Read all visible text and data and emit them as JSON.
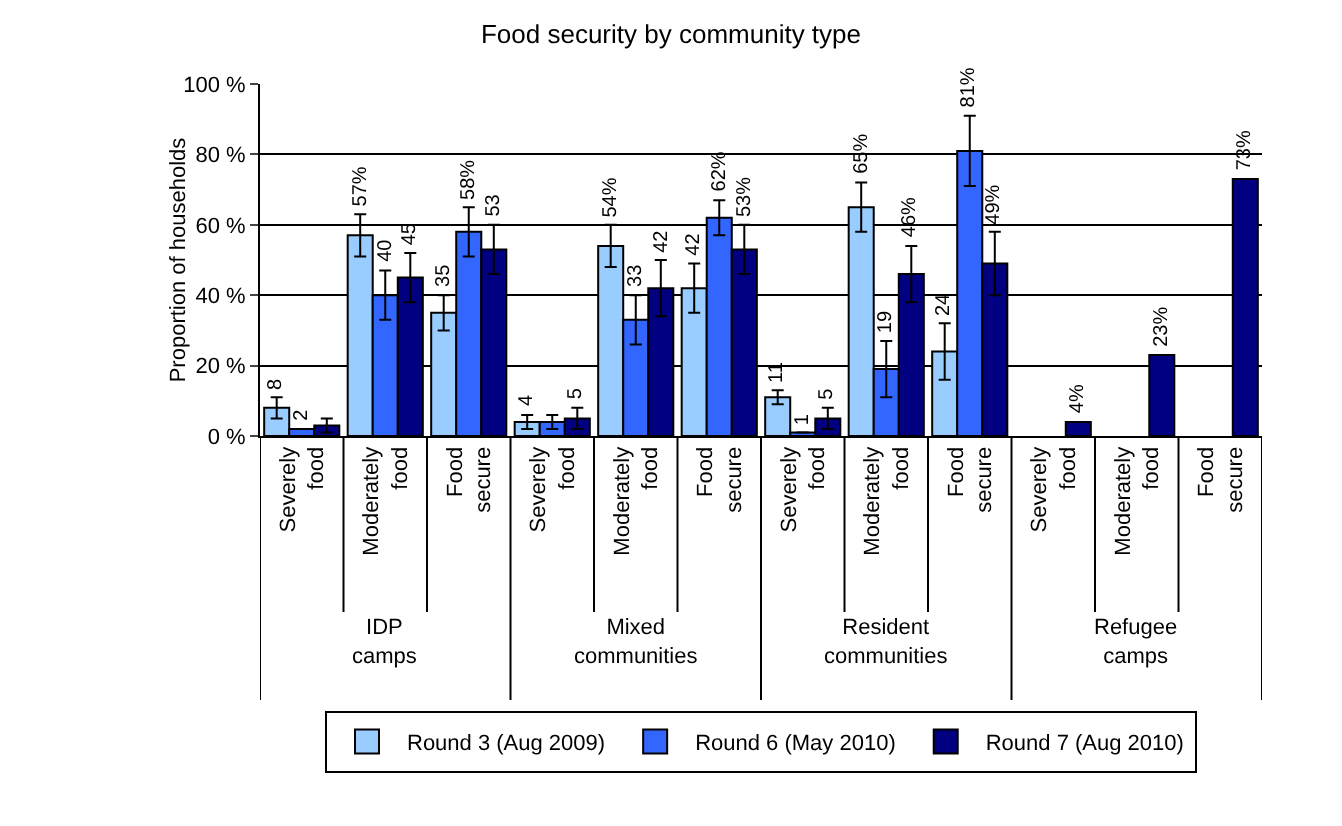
{
  "chart_data": {
    "type": "bar",
    "title": "Food security by community type",
    "ylabel": "Proportion of households",
    "categories": [
      "Severely food",
      "Moderately food",
      "Food secure",
      "Severely food",
      "Moderately food",
      "Food secure",
      "Severely food",
      "Moderately food",
      "Food secure",
      "Severely food",
      "Moderately food",
      "Food secure"
    ],
    "annotations": [
      "IDP camps",
      "Mixed communities",
      "Resident communities",
      "Refugee camps"
    ],
    "series": [
      {
        "name": "Round 3 (Aug 2009)",
        "color": "#99ccff",
        "values": [
          8,
          57,
          35,
          4,
          54,
          42,
          11,
          65,
          24,
          null,
          null,
          null
        ],
        "errors": [
          3,
          6,
          5,
          2,
          6,
          7,
          2,
          7,
          8,
          null,
          null,
          null
        ],
        "value_labels": [
          "8",
          "57%",
          "35",
          "4",
          "54%",
          "42",
          "11",
          "65%",
          "24",
          null,
          null,
          null
        ]
      },
      {
        "name": "Round 6 (May 2010)",
        "color": "#3366ff",
        "values": [
          2,
          40,
          58,
          4,
          33,
          62,
          1,
          19,
          81,
          null,
          null,
          null
        ],
        "errors": [
          null,
          7,
          7,
          2,
          7,
          5,
          null,
          8,
          10,
          null,
          null,
          null
        ],
        "value_labels": [
          "2",
          "40",
          "58%",
          null,
          "33",
          "62%",
          "1",
          "19",
          "81%",
          null,
          null,
          null
        ]
      },
      {
        "name": "Round 7 (Aug 2010)",
        "color": "#000080",
        "values": [
          3,
          45,
          53,
          5,
          42,
          53,
          5,
          46,
          49,
          4,
          23,
          73
        ],
        "errors": [
          2,
          7,
          7,
          3,
          8,
          7,
          3,
          8,
          9,
          null,
          null,
          null
        ],
        "value_labels": [
          null,
          "45",
          "53",
          "5",
          "42",
          "53%",
          "5",
          "46%",
          "49%",
          "4%",
          "23%",
          "73%"
        ]
      }
    ],
    "ylim": [
      0,
      100
    ],
    "yticks": [
      {
        "value": 0,
        "label": "0 %"
      },
      {
        "value": 20,
        "label": "20 %"
      },
      {
        "value": 40,
        "label": "40 %"
      },
      {
        "value": 60,
        "label": "60 %"
      },
      {
        "value": 80,
        "label": "80 %"
      },
      {
        "value": 100,
        "label": "100 %"
      }
    ],
    "grid": "y",
    "legend": "bottom"
  }
}
